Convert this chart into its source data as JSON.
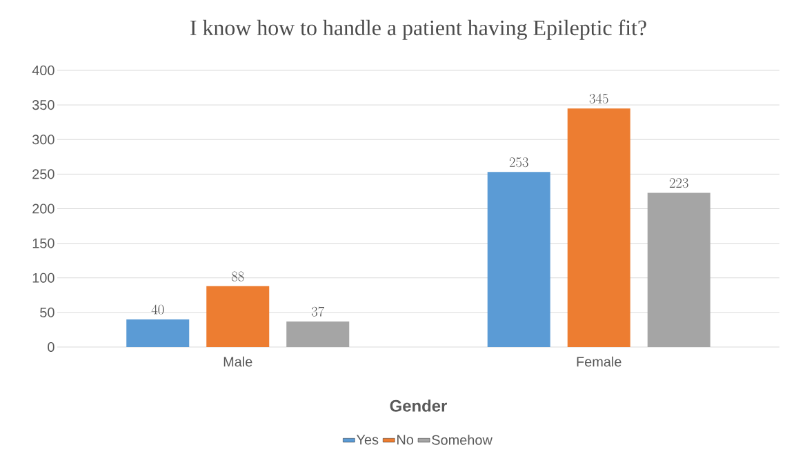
{
  "chart_data": {
    "type": "bar",
    "title": "I know how to handle a patient having Epileptic fit?",
    "xlabel": "Gender",
    "categories": [
      "Male",
      "Female"
    ],
    "series": [
      {
        "name": "Yes",
        "color": "#5b9bd5",
        "values": [
          40,
          253
        ]
      },
      {
        "name": "No",
        "color": "#ed7d31",
        "values": [
          88,
          345
        ]
      },
      {
        "name": "Somehow",
        "color": "#a5a5a5",
        "values": [
          37,
          223
        ]
      }
    ],
    "ylim": [
      0,
      400
    ],
    "yticks": [
      0,
      50,
      100,
      150,
      200,
      250,
      300,
      350,
      400
    ],
    "grid": "y",
    "legend": "bottom",
    "data_labels": true
  }
}
